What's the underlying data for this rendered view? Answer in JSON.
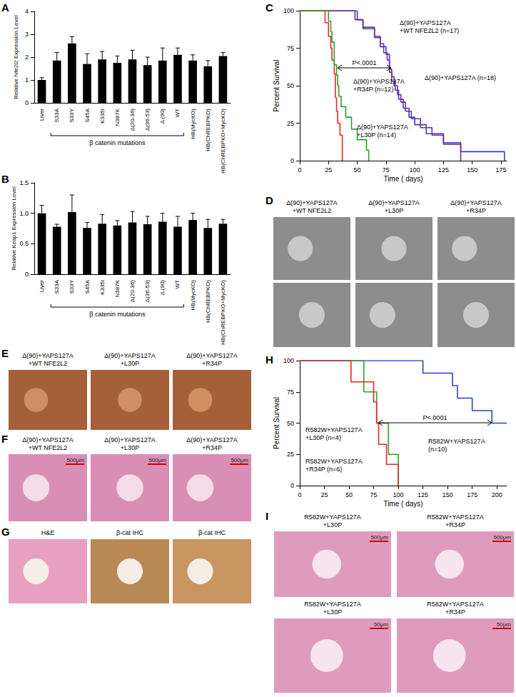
{
  "chart_data": [
    {
      "panel": "A",
      "type": "bar",
      "y_label": "Relative Nfe2l2 Expression Level",
      "categories": [
        "Liver",
        "S33A",
        "S33Y",
        "S45A",
        "K335I",
        "N387K",
        "Δ(20-36)",
        "Δ(36-53)",
        "Δ (90)",
        "WT",
        "HB(MycKO)",
        "HB(ChREBPKO)",
        "HB(ChREBPKO+MycKO)"
      ],
      "values": [
        1.0,
        1.85,
        2.6,
        1.7,
        1.9,
        1.75,
        1.9,
        1.65,
        1.85,
        2.1,
        1.85,
        1.6,
        2.05
      ],
      "errors": [
        0.1,
        0.35,
        0.3,
        0.45,
        0.35,
        0.3,
        0.4,
        0.35,
        0.55,
        0.3,
        0.25,
        0.25,
        0.15
      ],
      "color": "#000000",
      "ylim": [
        0,
        4
      ],
      "yticks": [
        0,
        1,
        2,
        3,
        4
      ],
      "grid": false,
      "group_label": "β catenin mutations",
      "group_span": [
        "S33A",
        "WT"
      ]
    },
    {
      "panel": "B",
      "type": "bar",
      "y_label": "Relative Keap1 Expression Level",
      "categories": [
        "Liver",
        "S33A",
        "S33Y",
        "S45A",
        "K335I",
        "N387K",
        "Δ(20-36)",
        "Δ(36-53)",
        "Δ (90)",
        "WT",
        "HB(MycKO)",
        "HB(ChREBPKO)",
        "HB(ChREBPKO+MycKO)"
      ],
      "values": [
        1.0,
        0.78,
        1.02,
        0.76,
        0.83,
        0.8,
        0.85,
        0.82,
        0.86,
        0.78,
        0.89,
        0.76,
        0.83
      ],
      "errors": [
        0.13,
        0.04,
        0.28,
        0.09,
        0.15,
        0.08,
        0.18,
        0.13,
        0.14,
        0.17,
        0.11,
        0.14,
        0.07
      ],
      "color": "#000000",
      "ylim": [
        0,
        1.5
      ],
      "yticks": [
        0,
        0.5,
        {
          "value": 1,
          "label": "1.0"
        },
        1.5
      ],
      "grid": false,
      "group_label": "β catenin mutations",
      "group_span": [
        "S33A",
        "WT"
      ]
    },
    {
      "panel": "C",
      "type": "survival",
      "x_label": "Time ( days)",
      "y_label": "Percent Survival",
      "xlim": [
        0,
        180
      ],
      "xticks": [
        0,
        25,
        50,
        75,
        100,
        125,
        150,
        175
      ],
      "ylim": [
        0,
        100
      ],
      "yticks": [
        0,
        25,
        50,
        75,
        100
      ],
      "grid": false,
      "line_style": "step",
      "annotation": "P<.0001",
      "series": [
        {
          "name": "Δ(90)+YAPS127A\n+WT NFE2L2 (n=17)",
          "color": "#2f3fd0",
          "x": [
            0,
            50,
            55,
            65,
            70,
            75,
            78,
            80,
            83,
            86,
            90,
            95,
            100,
            110,
            125,
            140,
            178
          ],
          "values": [
            100,
            94,
            88,
            82,
            76,
            71,
            59,
            53,
            47,
            41,
            35,
            29,
            24,
            18,
            12,
            6,
            0
          ]
        },
        {
          "name": "Δ(90)+YAPS127A (n=18)",
          "color": "#7b2d8e",
          "x": [
            0,
            48,
            55,
            65,
            70,
            73,
            76,
            78,
            80,
            82,
            85,
            88,
            92,
            97,
            105,
            115,
            125,
            140
          ],
          "values": [
            100,
            94,
            89,
            83,
            78,
            72,
            67,
            61,
            56,
            50,
            44,
            39,
            33,
            28,
            22,
            17,
            11,
            0
          ]
        },
        {
          "name": "Δ(90)+YAPS127A\n+R34P (n=12)",
          "color": "#e8262a",
          "x": [
            0,
            22,
            25,
            27,
            28,
            30,
            31,
            32,
            33,
            35,
            37
          ],
          "values": [
            100,
            92,
            83,
            75,
            67,
            58,
            42,
            33,
            25,
            17,
            0
          ]
        },
        {
          "name": "Δ(90)+YAPS127A\n+L30P (n=14)",
          "color": "#2ca02c",
          "x": [
            0,
            25,
            27,
            28,
            30,
            32,
            33,
            34,
            36,
            40,
            45,
            50,
            58,
            60
          ],
          "values": [
            100,
            93,
            86,
            79,
            64,
            57,
            50,
            43,
            36,
            29,
            21,
            14,
            7,
            0
          ]
        }
      ]
    },
    {
      "panel": "H",
      "type": "survival",
      "x_label": "Time ( days)",
      "y_label": "Percent Survival",
      "xlim": [
        0,
        210
      ],
      "xticks": [
        0,
        25,
        50,
        75,
        100,
        125,
        150,
        175,
        200
      ],
      "ylim": [
        0,
        100
      ],
      "yticks": [
        0,
        25,
        50,
        75,
        100
      ],
      "grid": false,
      "line_style": "step",
      "annotation": "P<.0001",
      "series": [
        {
          "name": "R582W+YAPS127A\n(n=10)",
          "color": "#2f3fd0",
          "x": [
            0,
            125,
            155,
            160,
            175,
            195,
            210
          ],
          "values": [
            100,
            90,
            80,
            70,
            60,
            50,
            50
          ]
        },
        {
          "name": "R582W+YAPS127A\n+L30P (n=4)",
          "color": "#2ca02c",
          "x": [
            0,
            65,
            78,
            90,
            100
          ],
          "values": [
            100,
            75,
            50,
            25,
            0
          ]
        },
        {
          "name": "R582W+YAPS127A\n+R34P (n=6)",
          "color": "#e8262a",
          "x": [
            0,
            52,
            75,
            78,
            80,
            88,
            100
          ],
          "values": [
            100,
            83,
            67,
            50,
            33,
            17,
            0
          ]
        }
      ]
    }
  ],
  "image_panels": [
    {
      "panel": "D",
      "captions": [
        "Δ(90)+YAPS127A\n+WT NFE2L2",
        "Δ(90)+YAPS127A\n+L30P",
        "Δ(90)+YAPS127A\n+R34P"
      ]
    },
    {
      "panel": "E",
      "captions": [
        "Δ(90)+YAPS127A\n+WT NFE2L2",
        "Δ(90)+YAPS127A\n+L30P",
        "Δ(90)+YAPS127A\n+R34P"
      ]
    },
    {
      "panel": "F",
      "captions": [
        "Δ(90)+YAPS127A\n+WT NFE2L2",
        "Δ(90)+YAPS127A\n+L30P",
        "Δ(90)+YAPS127A\n+R34P"
      ],
      "scale_bars": [
        "500μm",
        "500μm",
        "500μm"
      ]
    },
    {
      "panel": "G",
      "captions": [
        "H&E",
        "β-cat IHC",
        "β-cat IHC"
      ]
    },
    {
      "panel": "I",
      "captions": [
        "R582W+YAPS127A\n+L30P",
        "R582W+YAPS127A\n+R34P",
        "R582W+YAPS127A\n+L30P",
        "R582W+YAPS127A\n+R34P"
      ],
      "scale_bars": [
        "500μm",
        "500μm",
        "50μm",
        "50μm"
      ]
    }
  ]
}
